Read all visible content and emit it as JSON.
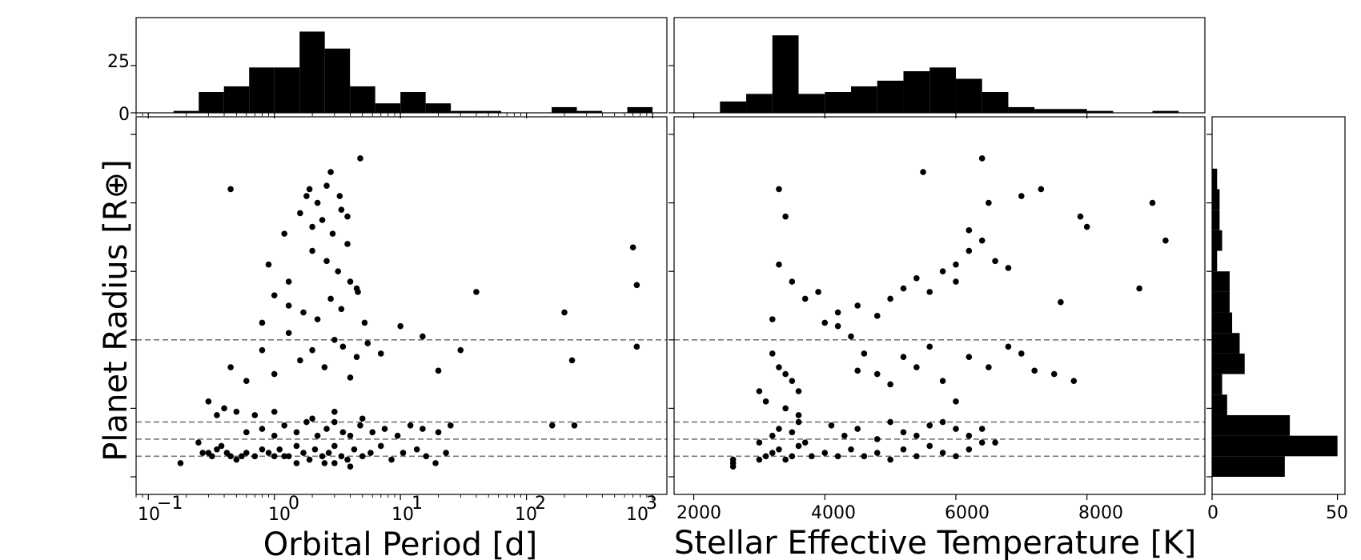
{
  "chart_data": [
    {
      "panel": "top-left-histogram",
      "type": "bar",
      "x_scale": "log",
      "bins_log10": [
        [
          -0.8,
          -0.6
        ],
        [
          -0.6,
          -0.4
        ],
        [
          -0.4,
          -0.2
        ],
        [
          -0.2,
          0.0
        ],
        [
          0.0,
          0.2
        ],
        [
          0.2,
          0.4
        ],
        [
          0.4,
          0.6
        ],
        [
          0.6,
          0.8
        ],
        [
          0.8,
          1.0
        ],
        [
          1.0,
          1.2
        ],
        [
          1.2,
          1.4
        ],
        [
          1.4,
          1.6
        ],
        [
          1.6,
          1.8
        ],
        [
          2.2,
          2.4
        ],
        [
          2.4,
          2.6
        ],
        [
          2.8,
          3.0
        ]
      ],
      "values": [
        1,
        11,
        14,
        24,
        24,
        43,
        34,
        14,
        5,
        11,
        5,
        1,
        1,
        3,
        1,
        3
      ],
      "ylim": [
        0,
        47
      ],
      "y_ticks": [
        "0",
        "25"
      ]
    },
    {
      "panel": "top-right-histogram",
      "type": "bar",
      "bin_edges": [
        2400,
        2800,
        3200,
        3600,
        4000,
        4400,
        4800,
        5200,
        5600,
        6000,
        6400,
        6800,
        7200,
        8000,
        8400,
        9000,
        9400
      ],
      "values": [
        6,
        10,
        41,
        10,
        11,
        14,
        17,
        22,
        24,
        18,
        11,
        3,
        2,
        1,
        0,
        1
      ],
      "ylim": [
        0,
        47
      ]
    },
    {
      "panel": "main-left-scatter",
      "type": "scatter",
      "x_scale": "log",
      "xlabel": "Orbital Period [d]",
      "ylabel": "Planet Radius [R⊕]",
      "x_tick_labels": [
        "10",
        "10",
        "10",
        "10",
        "10"
      ],
      "x_tick_exponents": [
        "−1",
        "0",
        "1",
        "2",
        "3"
      ],
      "xlim": [
        0.08,
        1300
      ],
      "ylim": [
        0,
        100
      ],
      "hlines": [
        6,
        11,
        16,
        40
      ],
      "points": [
        [
          0.18,
          4
        ],
        [
          0.25,
          10
        ],
        [
          0.27,
          7
        ],
        [
          0.3,
          7
        ],
        [
          0.32,
          6
        ],
        [
          0.35,
          8
        ],
        [
          0.38,
          9
        ],
        [
          0.42,
          7
        ],
        [
          0.45,
          6
        ],
        [
          0.5,
          5
        ],
        [
          0.55,
          6
        ],
        [
          0.6,
          7
        ],
        [
          0.7,
          6
        ],
        [
          0.8,
          8
        ],
        [
          0.9,
          7
        ],
        [
          1.0,
          6
        ],
        [
          1.1,
          8
        ],
        [
          1.3,
          6
        ],
        [
          1.5,
          9
        ],
        [
          1.7,
          7
        ],
        [
          1.9,
          5
        ],
        [
          2.1,
          8
        ],
        [
          2.4,
          6
        ],
        [
          2.7,
          7
        ],
        [
          3.0,
          9
        ],
        [
          3.4,
          6
        ],
        [
          3.8,
          5
        ],
        [
          4.3,
          8
        ],
        [
          5.0,
          6
        ],
        [
          5.8,
          7
        ],
        [
          7.0,
          9
        ],
        [
          8.5,
          5
        ],
        [
          10.5,
          7
        ],
        [
          13.5,
          8
        ],
        [
          16,
          6
        ],
        [
          19,
          4
        ],
        [
          23,
          7
        ],
        [
          0.6,
          13
        ],
        [
          0.8,
          14
        ],
        [
          1.0,
          12
        ],
        [
          1.2,
          15
        ],
        [
          1.5,
          13
        ],
        [
          1.8,
          16
        ],
        [
          2.2,
          12
        ],
        [
          2.6,
          14
        ],
        [
          3.0,
          16
        ],
        [
          3.5,
          13
        ],
        [
          4.0,
          12
        ],
        [
          4.8,
          15
        ],
        [
          6.0,
          13
        ],
        [
          7.5,
          14
        ],
        [
          9.5,
          12
        ],
        [
          12,
          15
        ],
        [
          15,
          14
        ],
        [
          20,
          13
        ],
        [
          25,
          15
        ],
        [
          0.3,
          22
        ],
        [
          0.4,
          20
        ],
        [
          0.35,
          18
        ],
        [
          0.5,
          19
        ],
        [
          0.7,
          18
        ],
        [
          1.0,
          19
        ],
        [
          2.0,
          17
        ],
        [
          3.0,
          19
        ],
        [
          5.0,
          17
        ],
        [
          0.45,
          32
        ],
        [
          0.6,
          28
        ],
        [
          0.8,
          37
        ],
        [
          1.0,
          30
        ],
        [
          1.3,
          42
        ],
        [
          1.6,
          34
        ],
        [
          2.0,
          37
        ],
        [
          2.5,
          32
        ],
        [
          3.0,
          40
        ],
        [
          3.5,
          38
        ],
        [
          4.0,
          29
        ],
        [
          4.5,
          35
        ],
        [
          5.5,
          39
        ],
        [
          7.0,
          36
        ],
        [
          10,
          44
        ],
        [
          15,
          41
        ],
        [
          20,
          31
        ],
        [
          30,
          37
        ],
        [
          0.8,
          45
        ],
        [
          1.0,
          53
        ],
        [
          1.3,
          50
        ],
        [
          1.7,
          48
        ],
        [
          2.2,
          46
        ],
        [
          2.8,
          52
        ],
        [
          3.4,
          49
        ],
        [
          4.0,
          57
        ],
        [
          4.6,
          54
        ],
        [
          5.2,
          45
        ],
        [
          0.9,
          62
        ],
        [
          1.3,
          57
        ],
        [
          2.0,
          66
        ],
        [
          2.6,
          63
        ],
        [
          3.2,
          60
        ],
        [
          3.8,
          68
        ],
        [
          4.5,
          55
        ],
        [
          40,
          54
        ],
        [
          200,
          48
        ],
        [
          230,
          34
        ],
        [
          750,
          56
        ],
        [
          700,
          67
        ],
        [
          750,
          38
        ],
        [
          160,
          15
        ],
        [
          240,
          15
        ],
        [
          1.2,
          71
        ],
        [
          1.6,
          77
        ],
        [
          2.0,
          73
        ],
        [
          2.4,
          75
        ],
        [
          2.9,
          71
        ],
        [
          3.3,
          82
        ],
        [
          3.8,
          76
        ],
        [
          1.8,
          82
        ],
        [
          1.9,
          84
        ],
        [
          2.2,
          80
        ],
        [
          2.6,
          85
        ],
        [
          3.4,
          78
        ],
        [
          0.45,
          84
        ],
        [
          2.8,
          89
        ],
        [
          4.8,
          93
        ],
        [
          3.0,
          4
        ],
        [
          4.0,
          3
        ],
        [
          1.5,
          4
        ],
        [
          1.2,
          6
        ],
        [
          2.5,
          4
        ]
      ]
    },
    {
      "panel": "main-right-scatter",
      "type": "scatter",
      "xlabel": "Stellar Effective Temperature [K]",
      "x_tick_labels": [
        "2000",
        "4000",
        "6000",
        "8000"
      ],
      "xlim": [
        1700,
        9800
      ],
      "ylim": [
        0,
        100
      ],
      "hlines": [
        6,
        11,
        16,
        40
      ],
      "points": [
        [
          2600,
          3
        ],
        [
          2600,
          4
        ],
        [
          2600,
          5
        ],
        [
          3000,
          5
        ],
        [
          3100,
          6
        ],
        [
          3200,
          7
        ],
        [
          3300,
          8
        ],
        [
          3400,
          5
        ],
        [
          3500,
          6
        ],
        [
          3600,
          9
        ],
        [
          3700,
          10
        ],
        [
          3800,
          6
        ],
        [
          4000,
          7
        ],
        [
          4200,
          6
        ],
        [
          4400,
          8
        ],
        [
          4600,
          6
        ],
        [
          4800,
          7
        ],
        [
          5000,
          5
        ],
        [
          5200,
          8
        ],
        [
          5400,
          6
        ],
        [
          5600,
          9
        ],
        [
          5800,
          7
        ],
        [
          6000,
          6
        ],
        [
          6200,
          8
        ],
        [
          6400,
          10
        ],
        [
          3000,
          10
        ],
        [
          3200,
          12
        ],
        [
          3300,
          14
        ],
        [
          3500,
          13
        ],
        [
          3600,
          16
        ],
        [
          4100,
          15
        ],
        [
          4300,
          12
        ],
        [
          4500,
          14
        ],
        [
          4800,
          11
        ],
        [
          5000,
          16
        ],
        [
          5200,
          13
        ],
        [
          5400,
          12
        ],
        [
          5600,
          15
        ],
        [
          5800,
          16
        ],
        [
          6000,
          14
        ],
        [
          6200,
          12
        ],
        [
          6400,
          14
        ],
        [
          6600,
          10
        ],
        [
          3200,
          36
        ],
        [
          3300,
          32
        ],
        [
          3400,
          30
        ],
        [
          3500,
          28
        ],
        [
          3600,
          25
        ],
        [
          3000,
          25
        ],
        [
          3100,
          22
        ],
        [
          3400,
          20
        ],
        [
          3600,
          18
        ],
        [
          4000,
          45
        ],
        [
          4200,
          44
        ],
        [
          4400,
          41
        ],
        [
          4600,
          36
        ],
        [
          4800,
          30
        ],
        [
          5000,
          27
        ],
        [
          5200,
          35
        ],
        [
          5400,
          32
        ],
        [
          5600,
          38
        ],
        [
          5800,
          28
        ],
        [
          6000,
          22
        ],
        [
          6200,
          35
        ],
        [
          6500,
          32
        ],
        [
          6800,
          38
        ],
        [
          7000,
          36
        ],
        [
          7200,
          31
        ],
        [
          7500,
          30
        ],
        [
          7800,
          28
        ],
        [
          3300,
          62
        ],
        [
          3500,
          57
        ],
        [
          3700,
          52
        ],
        [
          3900,
          54
        ],
        [
          4200,
          48
        ],
        [
          4500,
          50
        ],
        [
          4800,
          47
        ],
        [
          5000,
          52
        ],
        [
          5200,
          55
        ],
        [
          5400,
          58
        ],
        [
          5600,
          54
        ],
        [
          5800,
          60
        ],
        [
          6000,
          57
        ],
        [
          6200,
          66
        ],
        [
          6400,
          69
        ],
        [
          6600,
          63
        ],
        [
          6800,
          61
        ],
        [
          7600,
          51
        ],
        [
          3300,
          84
        ],
        [
          3400,
          76
        ],
        [
          6200,
          72
        ],
        [
          6500,
          80
        ],
        [
          7000,
          82
        ],
        [
          7300,
          84
        ],
        [
          8000,
          73
        ],
        [
          9000,
          80
        ],
        [
          9200,
          69
        ],
        [
          6400,
          93
        ],
        [
          5500,
          89
        ],
        [
          6000,
          62
        ],
        [
          7900,
          76
        ],
        [
          8800,
          55
        ],
        [
          3200,
          46
        ],
        [
          4500,
          31
        ]
      ]
    },
    {
      "panel": "right-histogram",
      "type": "bar",
      "orientation": "horizontal",
      "x_tick_labels": [
        "0",
        "50"
      ],
      "xlim": [
        0,
        53
      ],
      "bins_y": [
        [
          0,
          6
        ],
        [
          6,
          12
        ],
        [
          12,
          18
        ],
        [
          18,
          24
        ],
        [
          24,
          30
        ],
        [
          30,
          36
        ],
        [
          36,
          42
        ],
        [
          42,
          48
        ],
        [
          48,
          54
        ],
        [
          54,
          60
        ],
        [
          60,
          66
        ],
        [
          66,
          72
        ],
        [
          72,
          78
        ],
        [
          78,
          84
        ],
        [
          84,
          90
        ]
      ],
      "values": [
        29,
        50,
        31,
        6,
        4,
        13,
        11,
        8,
        7,
        7,
        2,
        4,
        3,
        3,
        2
      ]
    }
  ]
}
